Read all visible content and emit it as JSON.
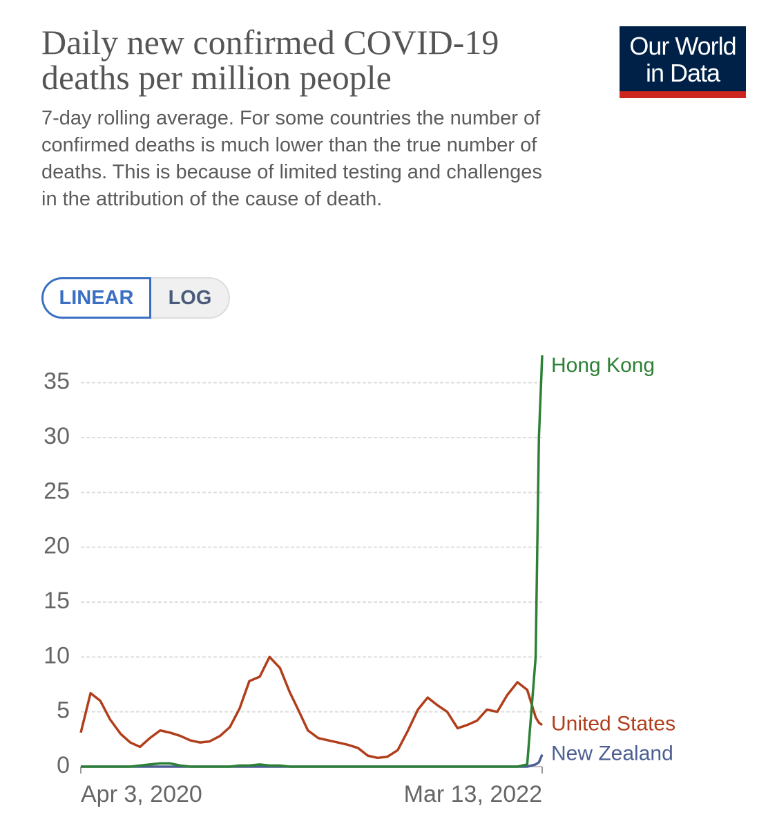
{
  "logo": [
    "Our World",
    "in Data"
  ],
  "controls": [
    "LINEAR",
    "LOG"
  ],
  "chart_data": {
    "type": "line",
    "title": "Daily new confirmed COVID-19 deaths per million people",
    "subtitle": "7-day rolling average. For some countries the number of confirmed deaths is much lower than the true number of deaths. This is because of limited testing and challenges in the attribution of the cause of death.",
    "x": [
      "2020-04-03",
      "2020-04-18",
      "2020-05-03",
      "2020-05-18",
      "2020-06-03",
      "2020-06-18",
      "2020-07-03",
      "2020-07-18",
      "2020-08-03",
      "2020-08-18",
      "2020-09-03",
      "2020-09-18",
      "2020-10-03",
      "2020-10-18",
      "2020-11-03",
      "2020-11-18",
      "2020-12-03",
      "2020-12-18",
      "2021-01-03",
      "2021-01-18",
      "2021-02-03",
      "2021-02-18",
      "2021-03-03",
      "2021-03-18",
      "2021-04-03",
      "2021-04-18",
      "2021-05-03",
      "2021-05-18",
      "2021-06-03",
      "2021-06-18",
      "2021-07-03",
      "2021-07-18",
      "2021-08-03",
      "2021-08-18",
      "2021-09-03",
      "2021-09-18",
      "2021-10-03",
      "2021-10-18",
      "2021-11-03",
      "2021-11-18",
      "2021-12-03",
      "2021-12-18",
      "2022-01-03",
      "2022-01-18",
      "2022-02-03",
      "2022-02-18",
      "2022-03-03",
      "2022-03-08",
      "2022-03-13"
    ],
    "series": [
      {
        "name": "Hong Kong",
        "color": "#2d8036",
        "values": [
          0,
          0,
          0,
          0,
          0,
          0,
          0.1,
          0.2,
          0.3,
          0.3,
          0.1,
          0,
          0,
          0,
          0,
          0,
          0.1,
          0.1,
          0.2,
          0.1,
          0.1,
          0,
          0,
          0,
          0,
          0,
          0,
          0,
          0,
          0,
          0,
          0,
          0,
          0,
          0,
          0,
          0,
          0,
          0,
          0,
          0,
          0,
          0,
          0,
          0,
          0.2,
          10,
          30,
          37.5
        ]
      },
      {
        "name": "United States",
        "color": "#b13e1b",
        "values": [
          3.1,
          6.7,
          6.0,
          4.3,
          3.0,
          2.2,
          1.8,
          2.6,
          3.3,
          3.1,
          2.8,
          2.4,
          2.2,
          2.3,
          2.8,
          3.6,
          5.3,
          7.8,
          8.2,
          10.0,
          9.0,
          6.8,
          5.2,
          3.3,
          2.6,
          2.4,
          2.2,
          2.0,
          1.7,
          1.0,
          0.8,
          0.9,
          1.5,
          3.2,
          5.2,
          6.3,
          5.6,
          5.0,
          3.5,
          3.8,
          4.2,
          5.2,
          5.0,
          6.5,
          7.7,
          7.0,
          4.5,
          4.0,
          3.8
        ]
      },
      {
        "name": "New Zealand",
        "color": "#4c5e94",
        "values": [
          0,
          0,
          0,
          0,
          0,
          0,
          0,
          0,
          0,
          0,
          0,
          0,
          0,
          0,
          0,
          0,
          0,
          0,
          0,
          0,
          0,
          0,
          0,
          0,
          0,
          0,
          0,
          0,
          0,
          0,
          0,
          0,
          0,
          0,
          0,
          0,
          0,
          0,
          0,
          0,
          0,
          0,
          0,
          0,
          0,
          0,
          0.2,
          0.4,
          1.1
        ]
      }
    ],
    "xlim": [
      "2020-04-03",
      "2022-03-13"
    ],
    "xticks": [
      {
        "value": "2020-04-03",
        "label": "Apr 3, 2020"
      },
      {
        "value": "2022-03-13",
        "label": "Mar 13, 2022"
      }
    ],
    "ylim": [
      0,
      37.5
    ],
    "yticks": [
      0,
      5,
      10,
      15,
      20,
      25,
      30,
      35
    ],
    "grid": true,
    "legend": "right"
  }
}
